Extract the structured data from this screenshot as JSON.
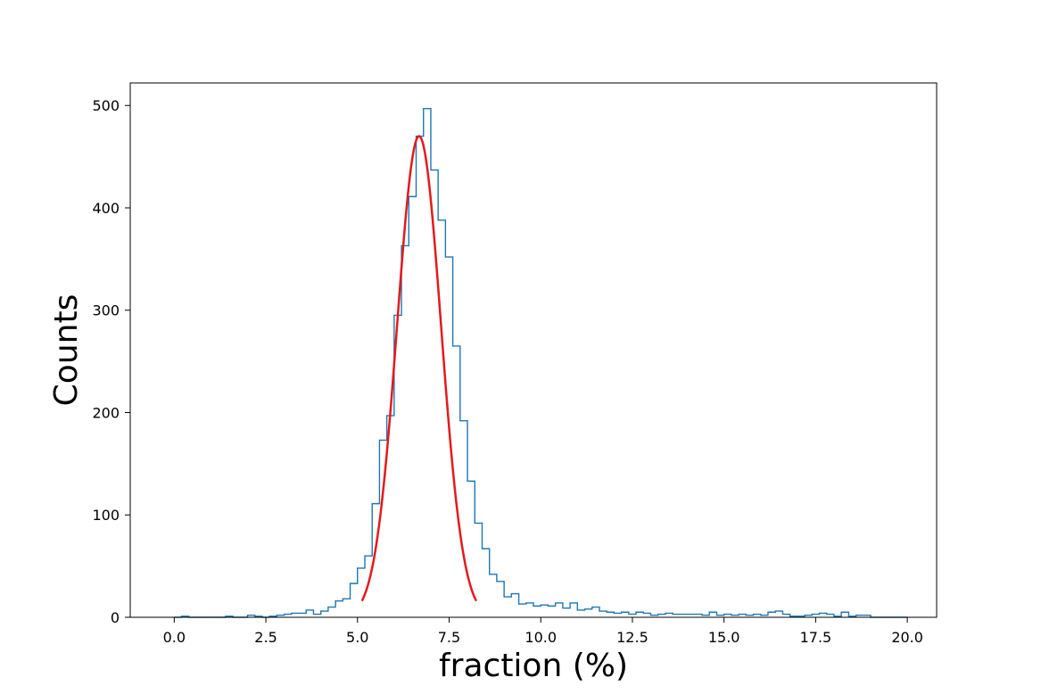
{
  "chart_data": {
    "type": "histogram",
    "xlabel": "fraction (%)",
    "ylabel": "Counts",
    "xlim": [
      -1.2,
      20.8
    ],
    "ylim": [
      0,
      522
    ],
    "x_ticks": [
      0.0,
      2.5,
      5.0,
      7.5,
      10.0,
      12.5,
      15.0,
      17.5,
      20.0
    ],
    "x_tick_labels": [
      "0.0",
      "2.5",
      "5.0",
      "7.5",
      "10.0",
      "12.5",
      "15.0",
      "17.5",
      "20.0"
    ],
    "y_ticks": [
      0,
      100,
      200,
      300,
      400,
      500
    ],
    "y_tick_labels": [
      "0",
      "100",
      "200",
      "300",
      "400",
      "500"
    ],
    "grid": false,
    "histogram": {
      "color": "#1f77b4",
      "bin_start": 0.0,
      "bin_width": 0.2,
      "counts": [
        0,
        1,
        0,
        0,
        0,
        0,
        0,
        1,
        0,
        0,
        2,
        1,
        0,
        1,
        2,
        3,
        4,
        4,
        7,
        3,
        6,
        10,
        16,
        18,
        33,
        48,
        60,
        111,
        173,
        197,
        295,
        363,
        411,
        470,
        497,
        437,
        388,
        352,
        265,
        192,
        133,
        92,
        67,
        42,
        35,
        20,
        23,
        13,
        14,
        11,
        12,
        11,
        14,
        9,
        14,
        7,
        8,
        10,
        6,
        5,
        4,
        5,
        3,
        5,
        4,
        2,
        3,
        4,
        3,
        3,
        3,
        3,
        2,
        5,
        2,
        3,
        2,
        3,
        2,
        3,
        2,
        5,
        6,
        3,
        1,
        1,
        2,
        3,
        4,
        3,
        1,
        5,
        1,
        2,
        2,
        0,
        0,
        0,
        0,
        0
      ]
    },
    "series": [
      {
        "type": "line",
        "color": "#e31a1c",
        "function": "gaussian",
        "amplitude": 470,
        "mean": 6.68,
        "sigma": 0.6,
        "x_range": [
          5.12,
          8.24
        ]
      }
    ]
  }
}
